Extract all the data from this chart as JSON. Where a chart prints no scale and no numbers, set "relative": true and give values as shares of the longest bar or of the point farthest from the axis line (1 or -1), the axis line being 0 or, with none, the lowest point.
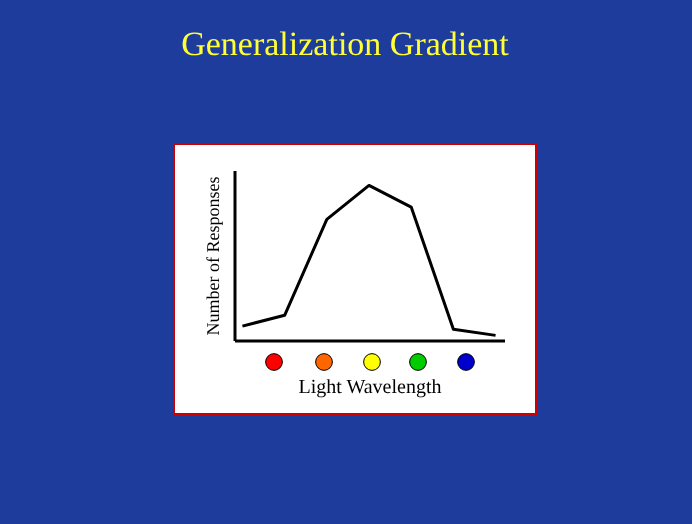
{
  "chart_data": {
    "type": "line",
    "title": "Generalization Gradient",
    "xlabel": "Light Wavelength",
    "ylabel": "Number of Responses",
    "categories": [
      null,
      null,
      null,
      null,
      null,
      null,
      null
    ],
    "series": [
      {
        "color": "#000000",
        "values": [
          0.09,
          0.16,
          0.78,
          1,
          0.86,
          0.07,
          0.03
        ]
      }
    ],
    "relative": true,
    "tick_labels": false,
    "marker": "none",
    "line_style": "solid"
  }
}
